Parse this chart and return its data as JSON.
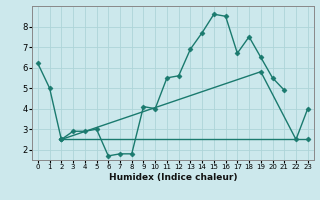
{
  "xlabel": "Humidex (Indice chaleur)",
  "background_color": "#cce8ec",
  "grid_color": "#aed4d8",
  "line_color": "#1a7a6e",
  "xlim": [
    -0.5,
    23.5
  ],
  "ylim": [
    1.5,
    9.0
  ],
  "xticks": [
    0,
    1,
    2,
    3,
    4,
    5,
    6,
    7,
    8,
    9,
    10,
    11,
    12,
    13,
    14,
    15,
    16,
    17,
    18,
    19,
    20,
    21,
    22,
    23
  ],
  "yticks": [
    2,
    3,
    4,
    5,
    6,
    7,
    8
  ],
  "series": [
    {
      "x": [
        0,
        1,
        2,
        3,
        4,
        5,
        6,
        7,
        8,
        9,
        10,
        11,
        12,
        13,
        14,
        15,
        16,
        17,
        18,
        19,
        20,
        21
      ],
      "y": [
        6.2,
        5.0,
        2.5,
        2.9,
        2.9,
        3.0,
        1.7,
        1.8,
        1.8,
        4.1,
        4.0,
        5.5,
        5.6,
        6.9,
        7.7,
        8.6,
        8.5,
        6.7,
        7.5,
        6.5,
        5.5,
        4.9
      ]
    },
    {
      "x": [
        2,
        23
      ],
      "y": [
        2.5,
        2.5
      ]
    },
    {
      "x": [
        2,
        19,
        22,
        23
      ],
      "y": [
        2.5,
        5.8,
        2.5,
        4.0
      ]
    }
  ]
}
